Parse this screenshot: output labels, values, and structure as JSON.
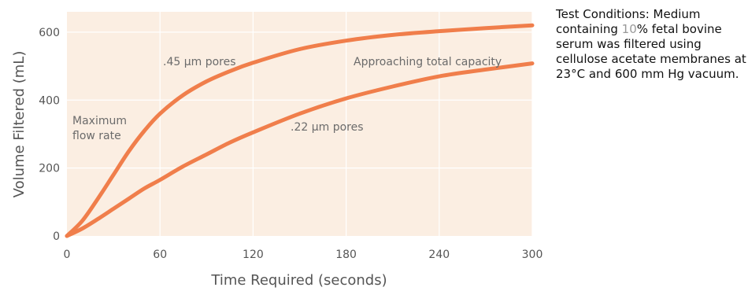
{
  "chart_data": {
    "type": "line",
    "xlabel": "Time Required (seconds)",
    "ylabel": "Volume Filtered (mL)",
    "xlim": [
      0,
      300
    ],
    "ylim": [
      0,
      660
    ],
    "x_ticks": [
      "0",
      "60",
      "120",
      "180",
      "240",
      "300"
    ],
    "y_ticks": [
      "0",
      "200",
      "400",
      "600"
    ],
    "grid": true,
    "background_color": "#fbeee2",
    "line_color": "#f07e4b",
    "series": [
      {
        "name": ".45 µm pores",
        "x": [
          0,
          10,
          20,
          30,
          40,
          50,
          60,
          75,
          90,
          105,
          120,
          150,
          180,
          210,
          240,
          270,
          300
        ],
        "y": [
          0,
          45,
          110,
          180,
          250,
          310,
          360,
          415,
          455,
          485,
          510,
          550,
          575,
          592,
          603,
          612,
          620
        ]
      },
      {
        "name": ".22 µm pores",
        "x": [
          0,
          10,
          20,
          30,
          40,
          50,
          60,
          75,
          90,
          105,
          120,
          150,
          180,
          210,
          240,
          270,
          300
        ],
        "y": [
          0,
          22,
          50,
          80,
          110,
          140,
          165,
          205,
          240,
          275,
          305,
          360,
          405,
          440,
          470,
          490,
          508
        ]
      }
    ],
    "annotations": {
      "max_flow_line1": "Maximum",
      "max_flow_line2": "flow rate",
      "approaching": "Approaching total capacity",
      "p45": ".45 µm pores",
      "p22": ".22 µm pores"
    }
  },
  "conditions": {
    "before": "Test Conditions: Medium containing ",
    "highlight": "10",
    "after": "% fetal bovine serum was filtered using cellulose acetate membranes at 23°C and 600 mm Hg vacuum."
  }
}
